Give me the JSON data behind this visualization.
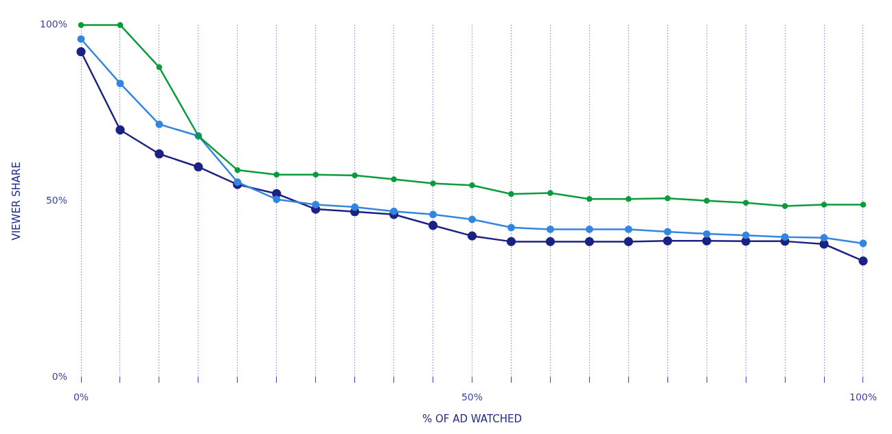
{
  "chart_data": {
    "type": "line",
    "xlabel": "% OF AD WATCHED",
    "ylabel": "VIEWER SHARE",
    "x": [
      0,
      5,
      10,
      15,
      20,
      25,
      30,
      35,
      40,
      45,
      50,
      55,
      60,
      65,
      70,
      75,
      80,
      85,
      90,
      95,
      100
    ],
    "series": [
      {
        "color": "#0a9b3c",
        "values": [
          100,
          100,
          88,
          68.5,
          58.8,
          57.5,
          57.5,
          57.3,
          56.2,
          55,
          54.5,
          52,
          52.3,
          50.6,
          50.6,
          50.8,
          50.1,
          49.5,
          48.6,
          49,
          49
        ]
      },
      {
        "color": "#3385e0",
        "values": [
          96,
          83.4,
          71.8,
          68.5,
          55.4,
          50.5,
          49,
          48.3,
          47.1,
          46.2,
          44.8,
          42.5,
          42,
          42,
          42,
          41.3,
          40.7,
          40.3,
          39.8,
          39.6,
          38
        ]
      },
      {
        "color": "#1c2283",
        "values": [
          92.4,
          70.2,
          63.4,
          59.7,
          54.7,
          52.1,
          47.7,
          47,
          46.2,
          43.1,
          40.1,
          38.5,
          38.5,
          38.5,
          38.5,
          38.7,
          38.7,
          38.6,
          38.6,
          37.8,
          33
        ]
      }
    ],
    "xlim": [
      0,
      100
    ],
    "xticks": [
      {
        "value": 0,
        "label": "0%"
      },
      {
        "value": 5,
        "label": null
      },
      {
        "value": 10,
        "label": null
      },
      {
        "value": 15,
        "label": null
      },
      {
        "value": 20,
        "label": null
      },
      {
        "value": 25,
        "label": null
      },
      {
        "value": 30,
        "label": null
      },
      {
        "value": 35,
        "label": null
      },
      {
        "value": 40,
        "label": null
      },
      {
        "value": 45,
        "label": null
      },
      {
        "value": 50,
        "label": "50%"
      },
      {
        "value": 55,
        "label": null
      },
      {
        "value": 60,
        "label": null
      },
      {
        "value": 65,
        "label": null
      },
      {
        "value": 70,
        "label": null
      },
      {
        "value": 75,
        "label": null
      },
      {
        "value": 80,
        "label": null
      },
      {
        "value": 85,
        "label": null
      },
      {
        "value": 90,
        "label": null
      },
      {
        "value": 95,
        "label": null
      },
      {
        "value": 100,
        "label": "100%"
      }
    ],
    "ylim": [
      0,
      100
    ],
    "yticks": [
      {
        "value": 0,
        "label": "0%"
      },
      {
        "value": 50,
        "label": "50%"
      },
      {
        "value": 100,
        "label": "100%"
      }
    ],
    "grid": "x",
    "legend": false,
    "marker": "circle",
    "line_style": "solid"
  }
}
